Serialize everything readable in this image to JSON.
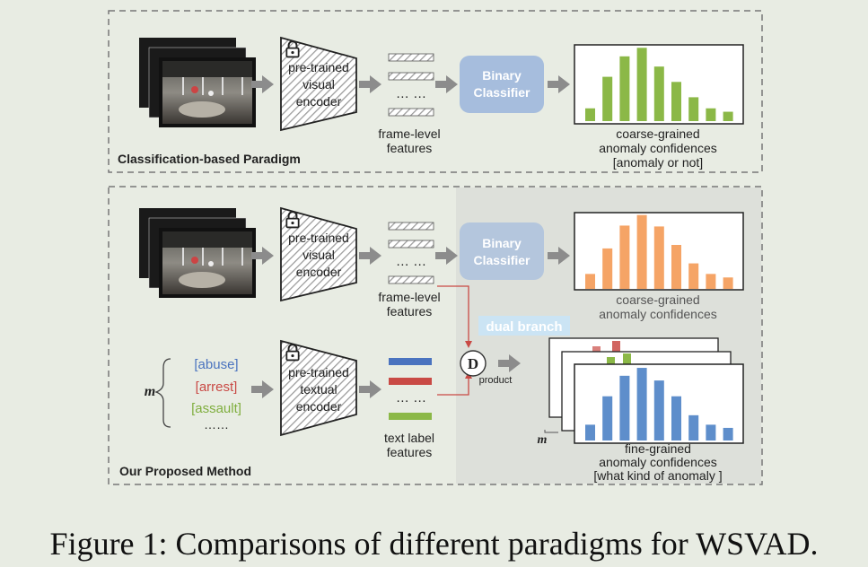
{
  "caption": "Figure 1: Comparisons of different paradigms for WSVAD.",
  "colors": {
    "coarse_bars_top": "#8bb847",
    "coarse_bars_bottom": "#f5a466",
    "fine_bars": "#5e8ecb",
    "classifier_box": "#a6bddd",
    "arrow": "#8c8c8c",
    "label_abuse": "#4a73bf",
    "label_arrest": "#c94a45",
    "label_assault": "#7fae3e"
  },
  "top_panel": {
    "title": "Classification-based Paradigm",
    "encoder_label": [
      "pre-trained",
      "visual",
      "encoder"
    ],
    "features_dots": "… …",
    "features_label": [
      "frame-level",
      "features"
    ],
    "classifier_label": [
      "Binary",
      "Classifier"
    ],
    "output_label": [
      "coarse-grained",
      "anomaly confidences",
      "[anomaly or not]"
    ]
  },
  "bottom_panel": {
    "title": "Our Proposed Method",
    "visual_encoder_label": [
      "pre-trained",
      "visual",
      "encoder"
    ],
    "frame_features_dots": "… …",
    "frame_features_label": [
      "frame-level",
      "features"
    ],
    "classifier_label": [
      "Binary",
      "Classifier"
    ],
    "coarse_output_label": [
      "coarse-grained",
      "anomaly confidences"
    ],
    "dual_branch_label": "dual branch",
    "m_symbol": "m",
    "text_labels": [
      "[abuse]",
      "[arrest]",
      "[assault]",
      "……"
    ],
    "textual_encoder_label": [
      "pre-trained",
      "textual",
      "encoder"
    ],
    "text_features_dots": "… …",
    "text_features_label": [
      "text label",
      "features"
    ],
    "product_symbol": "D",
    "product_label": "product",
    "fine_output_label": [
      "fine-grained",
      "anomaly confidences",
      "[what kind of anomaly ]"
    ]
  },
  "chart_data": [
    {
      "type": "bar",
      "name": "coarse-grained (classification)",
      "values": [
        0.15,
        0.52,
        0.76,
        0.86,
        0.64,
        0.46,
        0.28,
        0.15,
        0.11
      ]
    },
    {
      "type": "bar",
      "name": "coarse-grained (proposed)",
      "values": [
        0.17,
        0.46,
        0.72,
        0.84,
        0.71,
        0.5,
        0.29,
        0.17,
        0.13
      ]
    },
    {
      "type": "bar",
      "name": "fine-grained",
      "values": [
        0.2,
        0.56,
        0.82,
        0.92,
        0.76,
        0.56,
        0.32,
        0.2,
        0.16
      ]
    }
  ]
}
